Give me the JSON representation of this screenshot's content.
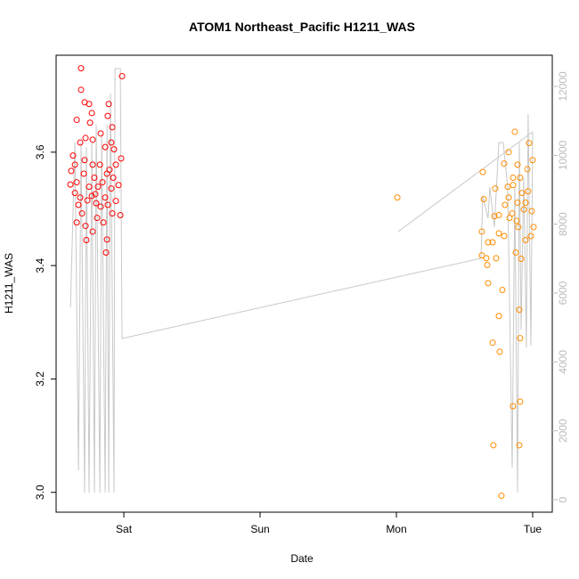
{
  "chart_data": {
    "type": "scatter",
    "title": "ATOM1 Northeast_Pacific H1211_WAS",
    "x_label": "Date",
    "y_label": "H1211_WAS",
    "xlim": [
      -0.497,
      3.144
    ],
    "xticks": [
      {
        "value": 0,
        "label": "Sat"
      },
      {
        "value": 1,
        "label": "Sun"
      },
      {
        "value": 2,
        "label": "Mon"
      },
      {
        "value": 3,
        "label": "Tue"
      }
    ],
    "ylim": [
      2.965,
      3.771
    ],
    "yticks": [
      {
        "value": 3.0,
        "label": "3.0"
      },
      3.2,
      3.4,
      3.6
    ],
    "y2lim": [
      -362,
      12905
    ],
    "y2ticks": [
      0,
      2000,
      4000,
      6000,
      8000,
      10000,
      12000
    ],
    "series": [
      {
        "color": "#ff0000",
        "x": [
          -0.314,
          -0.314,
          -0.288,
          -0.346,
          -0.255,
          -0.235,
          -0.248,
          -0.111,
          -0.118,
          -0.013,
          -0.085,
          -0.092,
          -0.281,
          -0.229,
          -0.137,
          -0.32,
          -0.373,
          -0.359,
          -0.386,
          -0.392,
          -0.359,
          -0.333,
          -0.307,
          -0.346,
          -0.281,
          -0.275,
          -0.229,
          -0.196,
          -0.17,
          -0.137,
          -0.118,
          -0.15,
          -0.124,
          -0.131,
          -0.085,
          -0.059,
          -0.026,
          -0.039,
          -0.02,
          -0.059,
          -0.078,
          -0.105,
          -0.176,
          -0.216,
          -0.255,
          -0.294,
          -0.268,
          -0.235,
          -0.19,
          -0.157,
          -0.203,
          -0.288,
          -0.229,
          -0.124,
          -0.072,
          -0.17,
          -0.209,
          -0.092,
          -0.346,
          -0.32
        ],
        "values": [
          3.748,
          3.71,
          3.688,
          3.657,
          3.685,
          3.669,
          3.652,
          3.685,
          3.664,
          3.734,
          3.644,
          3.617,
          3.625,
          3.622,
          3.609,
          3.617,
          3.594,
          3.578,
          3.567,
          3.543,
          3.528,
          3.507,
          3.492,
          3.476,
          3.47,
          3.445,
          3.46,
          3.484,
          3.504,
          3.52,
          3.507,
          3.476,
          3.446,
          3.423,
          3.492,
          3.514,
          3.489,
          3.542,
          3.589,
          3.578,
          3.555,
          3.569,
          3.578,
          3.555,
          3.539,
          3.562,
          3.515,
          3.523,
          3.539,
          3.547,
          3.51,
          3.586,
          3.578,
          3.562,
          3.605,
          3.633,
          3.526,
          3.536,
          3.547,
          3.52
        ]
      },
      {
        "color": "#ff8c00",
        "x": [
          2.007,
          2.869,
          2.771,
          2.712,
          2.902,
          2.908,
          2.856,
          2.908,
          2.706,
          2.902,
          2.758,
          2.752,
          2.778,
          2.673,
          2.667,
          2.627,
          2.706,
          2.673,
          2.66,
          2.732,
          2.627,
          2.752,
          2.791,
          2.876,
          2.915,
          2.948,
          2.987,
          3.007,
          2.895,
          2.83,
          2.752,
          2.719,
          2.641,
          2.634,
          2.725,
          2.817,
          2.856,
          2.889,
          2.824,
          2.974,
          3.0,
          2.961,
          2.791,
          2.889,
          2.922,
          2.967,
          2.993,
          2.935,
          2.824,
          2.797,
          2.85,
          2.882,
          2.948,
          2.856,
          2.908
        ],
        "values": [
          3.52,
          3.636,
          2.994,
          3.083,
          3.083,
          3.16,
          3.152,
          3.272,
          3.264,
          3.322,
          3.248,
          3.311,
          3.357,
          3.369,
          3.401,
          3.418,
          3.441,
          3.441,
          3.413,
          3.413,
          3.46,
          3.457,
          3.452,
          3.423,
          3.412,
          3.445,
          3.452,
          3.468,
          3.468,
          3.484,
          3.489,
          3.487,
          3.517,
          3.565,
          3.536,
          3.539,
          3.555,
          3.578,
          3.6,
          3.616,
          3.586,
          3.57,
          3.58,
          3.511,
          3.528,
          3.531,
          3.496,
          3.499,
          3.52,
          3.507,
          3.492,
          3.479,
          3.511,
          3.542,
          3.555
        ]
      },
      {
        "type": "line",
        "axis": "y2",
        "color": "#c8c8c8",
        "x": [
          -0.392,
          -0.359,
          -0.333,
          -0.314,
          -0.288,
          -0.275,
          -0.255,
          -0.235,
          -0.216,
          -0.203,
          -0.176,
          -0.163,
          -0.137,
          -0.124,
          -0.111,
          -0.098,
          -0.072,
          -0.065,
          -0.026,
          -0.013,
          2.621,
          2.634,
          2.673,
          2.686,
          2.719,
          2.752,
          2.784,
          2.817,
          2.85,
          2.869,
          2.889,
          2.902,
          2.915,
          2.935,
          2.954,
          2.967,
          2.987,
          3.0,
          3.0,
          2.013,
          3.0
        ],
        "values": [
          5586,
          10370,
          853,
          10370,
          207,
          10240,
          207,
          10370,
          207,
          10887,
          207,
          10628,
          207,
          10887,
          207,
          11792,
          207,
          12516,
          12516,
          4681,
          7008,
          8818,
          8172,
          9077,
          7913,
          10370,
          10370,
          9077,
          931,
          9077,
          207,
          10370,
          4939,
          9336,
          4422,
          11197,
          4474,
          10680,
          null,
          7784,
          10680
        ]
      }
    ]
  }
}
